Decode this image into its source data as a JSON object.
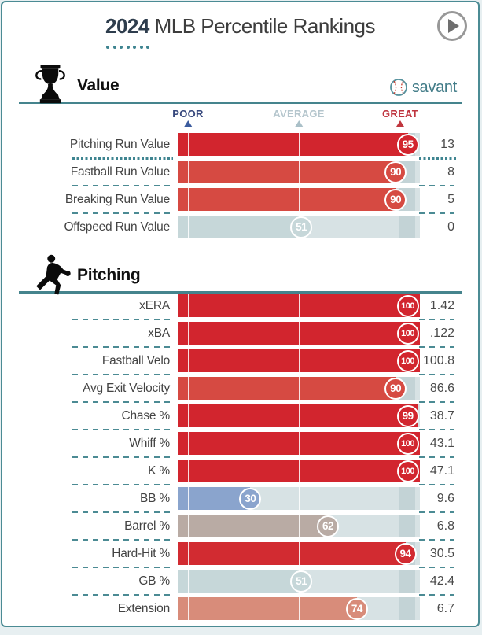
{
  "page": {
    "title_year": "2024",
    "title_rest": "MLB Percentile Rankings",
    "accent_teal": "#45848d",
    "border_color": "#4b8b94"
  },
  "brand": {
    "name": "savant"
  },
  "scale_labels": {
    "poor": "POOR",
    "average": "AVERAGE",
    "great": "GREAT"
  },
  "scale_colors": {
    "poor": "#36477c",
    "average": "#b5c6cd",
    "great": "#bf3540"
  },
  "track_color": "#d7e2e4",
  "sections": [
    {
      "id": "value",
      "title": "Value",
      "icon": "trophy-icon",
      "rows": [
        {
          "label": "Pitching Run Value",
          "pct": 95,
          "value": "13",
          "color": "#d2252e",
          "selected": true
        },
        {
          "label": "Fastball Run Value",
          "pct": 90,
          "value": "8",
          "color": "#d64a42"
        },
        {
          "label": "Breaking Run Value",
          "pct": 90,
          "value": "5",
          "color": "#d64a42"
        },
        {
          "label": "Offspeed Run Value",
          "pct": 51,
          "value": "0",
          "color": "#c6d7d9"
        }
      ]
    },
    {
      "id": "pitching",
      "title": "Pitching",
      "icon": "pitcher-icon",
      "rows": [
        {
          "label": "xERA",
          "pct": 100,
          "value": "1.42",
          "color": "#d2252e"
        },
        {
          "label": "xBA",
          "pct": 100,
          "value": ".122",
          "color": "#d2252e"
        },
        {
          "label": "Fastball Velo",
          "pct": 100,
          "value": "100.8",
          "color": "#d2252e"
        },
        {
          "label": "Avg Exit Velocity",
          "pct": 90,
          "value": "86.6",
          "color": "#d64a42"
        },
        {
          "label": "Chase %",
          "pct": 99,
          "value": "38.7",
          "color": "#d2252e"
        },
        {
          "label": "Whiff %",
          "pct": 100,
          "value": "43.1",
          "color": "#d2252e"
        },
        {
          "label": "K %",
          "pct": 100,
          "value": "47.1",
          "color": "#d2252e"
        },
        {
          "label": "BB %",
          "pct": 30,
          "value": "9.6",
          "color": "#8aa4cd"
        },
        {
          "label": "Barrel %",
          "pct": 62,
          "value": "6.8",
          "color": "#b9aba4"
        },
        {
          "label": "Hard-Hit %",
          "pct": 94,
          "value": "30.5",
          "color": "#d22b31"
        },
        {
          "label": "GB %",
          "pct": 51,
          "value": "42.4",
          "color": "#c6d7d9"
        },
        {
          "label": "Extension",
          "pct": 74,
          "value": "6.7",
          "color": "#d88c7a"
        }
      ]
    }
  ],
  "chart_data": [
    {
      "type": "bar",
      "orientation": "horizontal",
      "title": "Value",
      "categories": [
        "Pitching Run Value",
        "Fastball Run Value",
        "Breaking Run Value",
        "Offspeed Run Value"
      ],
      "series": [
        {
          "name": "Percentile",
          "values": [
            95,
            90,
            90,
            51
          ]
        },
        {
          "name": "Stat Value",
          "values": [
            13,
            8,
            5,
            0
          ]
        }
      ],
      "xlim": [
        0,
        100
      ],
      "axis_markers": {
        "POOR": 5,
        "AVERAGE": 50,
        "GREAT": 92
      }
    },
    {
      "type": "bar",
      "orientation": "horizontal",
      "title": "Pitching",
      "categories": [
        "xERA",
        "xBA",
        "Fastball Velo",
        "Avg Exit Velocity",
        "Chase %",
        "Whiff %",
        "K %",
        "BB %",
        "Barrel %",
        "Hard-Hit %",
        "GB %",
        "Extension"
      ],
      "series": [
        {
          "name": "Percentile",
          "values": [
            100,
            100,
            100,
            90,
            99,
            100,
            100,
            30,
            62,
            94,
            51,
            74
          ]
        },
        {
          "name": "Stat Value",
          "values": [
            1.42,
            0.122,
            100.8,
            86.6,
            38.7,
            43.1,
            47.1,
            9.6,
            6.8,
            30.5,
            42.4,
            6.7
          ]
        }
      ],
      "xlim": [
        0,
        100
      ],
      "axis_markers": {
        "POOR": 5,
        "AVERAGE": 50,
        "GREAT": 92
      }
    }
  ]
}
